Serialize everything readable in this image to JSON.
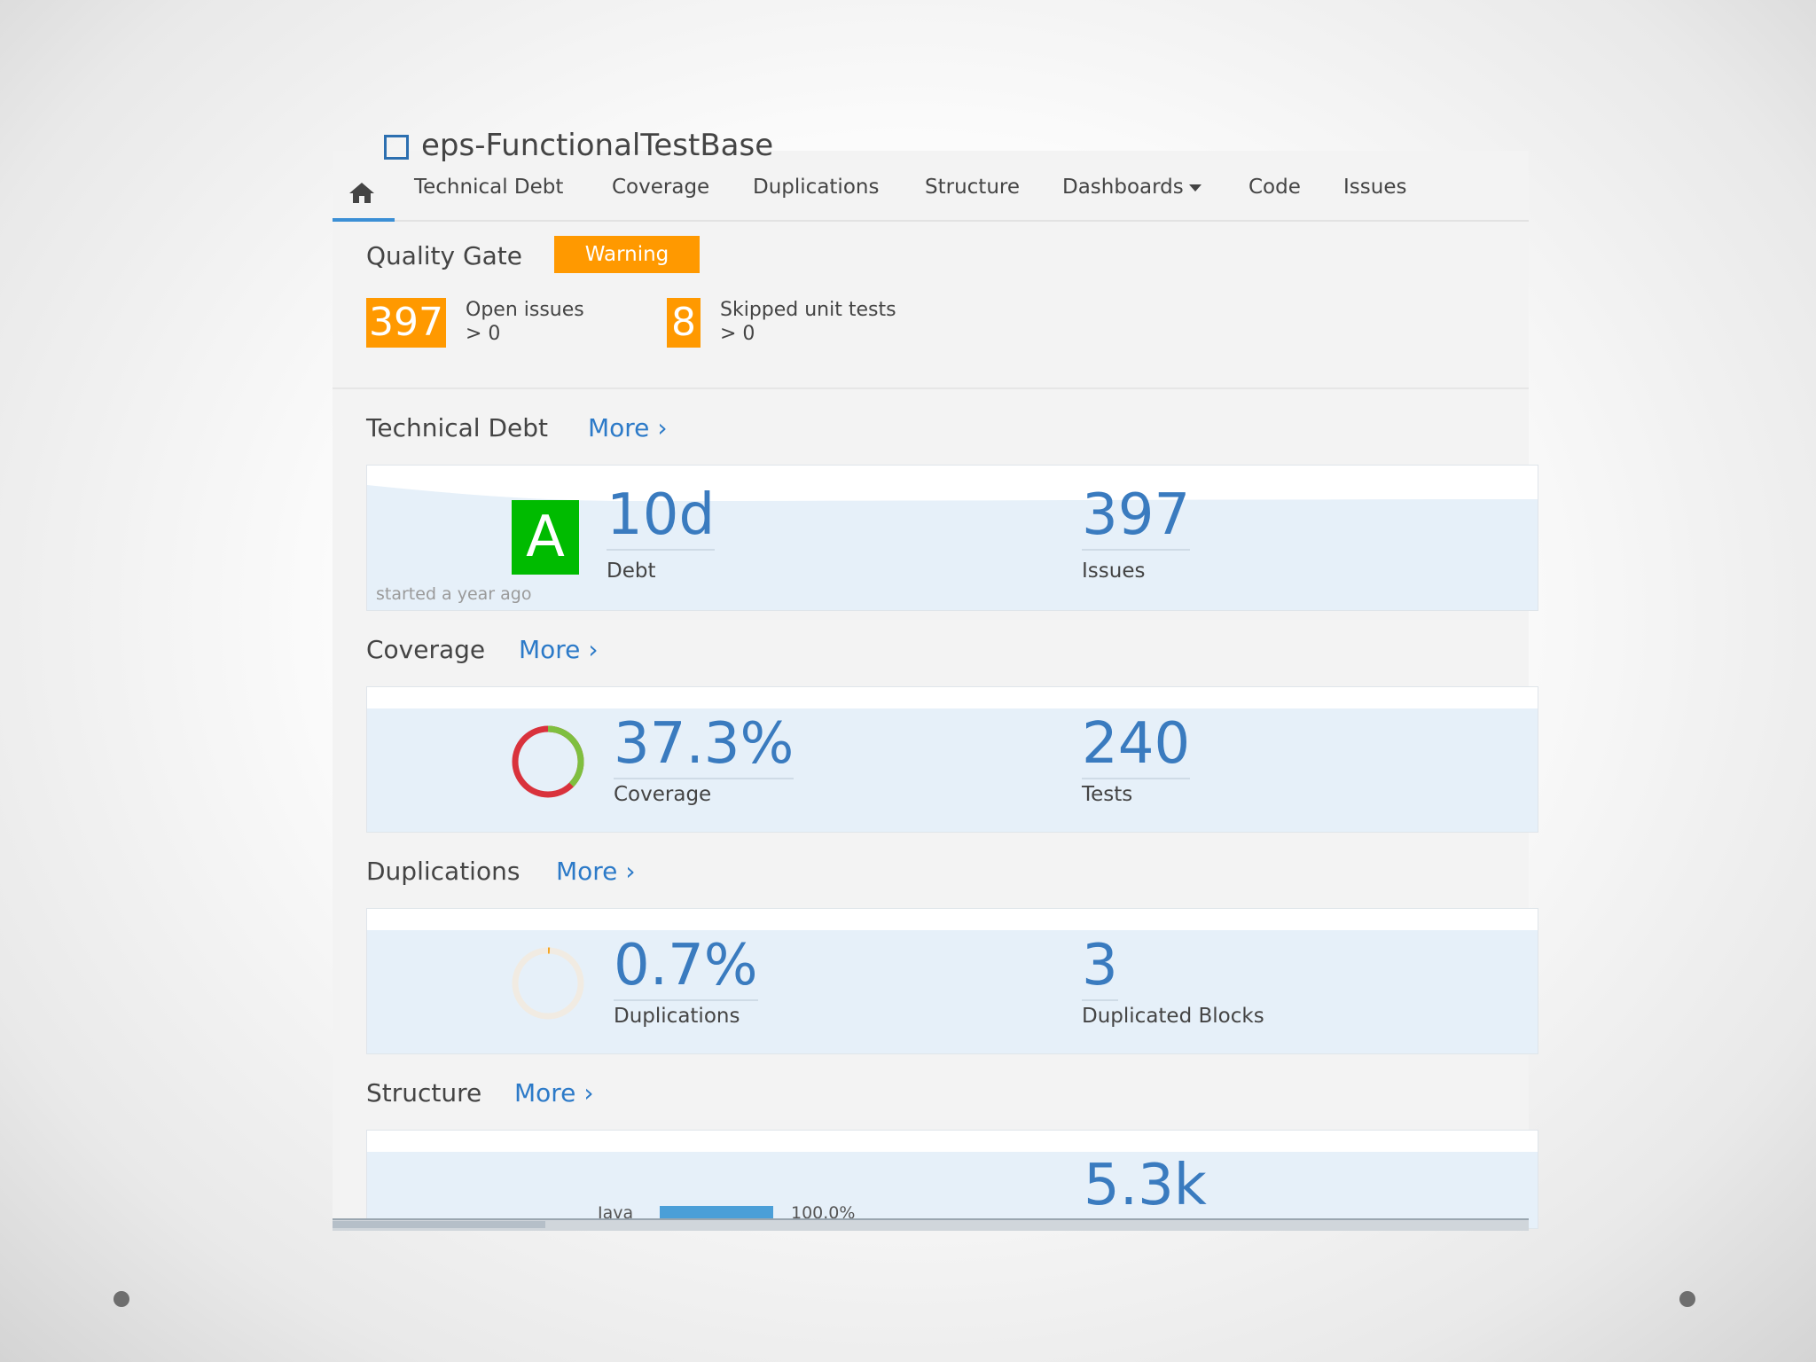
{
  "project": {
    "title": "eps-FunctionalTestBase"
  },
  "nav": {
    "items": [
      "Technical Debt",
      "Coverage",
      "Duplications",
      "Structure",
      "Dashboards",
      "Code",
      "Issues"
    ],
    "active": "home"
  },
  "quality_gate": {
    "title": "Quality Gate",
    "status": "Warning",
    "conditions": [
      {
        "value": "397",
        "label": "Open issues",
        "threshold": "> 0"
      },
      {
        "value": "8",
        "label": "Skipped unit tests",
        "threshold": "> 0"
      }
    ]
  },
  "technical_debt": {
    "title": "Technical Debt",
    "more": "More ›",
    "rating": "A",
    "debt_value": "10d",
    "debt_label": "Debt",
    "issues_value": "397",
    "issues_label": "Issues",
    "note": "started a year ago"
  },
  "coverage": {
    "title": "Coverage",
    "more": "More ›",
    "value": "37.3%",
    "label": "Coverage",
    "coverage_fraction": 0.373,
    "tests_value": "240",
    "tests_label": "Tests"
  },
  "duplications": {
    "title": "Duplications",
    "more": "More ›",
    "value": "0.7%",
    "label": "Duplications",
    "dup_fraction": 0.007,
    "blocks_value": "3",
    "blocks_label": "Duplicated Blocks"
  },
  "structure": {
    "title": "Structure",
    "more": "More ›",
    "language": "Java",
    "language_pct": "100.0%",
    "language_fraction": 1.0,
    "size_value": "5.3k"
  },
  "colors": {
    "accent": "#3a7bbf",
    "warning": "#ff9900",
    "rating_a": "#00bb00",
    "coverage_good": "#7fbf3f",
    "coverage_bad": "#d9323c"
  }
}
